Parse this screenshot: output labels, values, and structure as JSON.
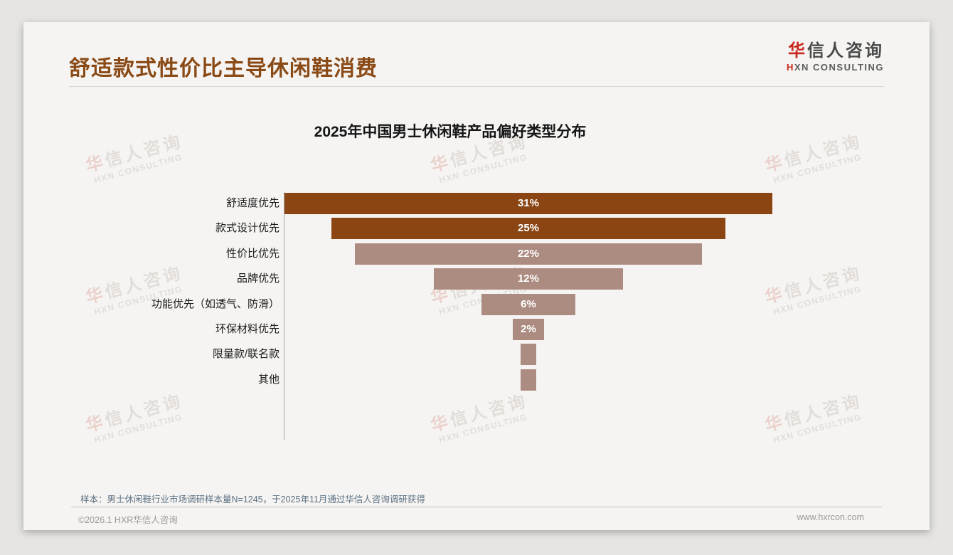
{
  "header": {
    "title": "舒适款式性价比主导休闲鞋消费",
    "logo": {
      "cn_first": "华",
      "cn_rest": "信人咨询",
      "en_first": "H",
      "en_rest": "XN CONSULTING"
    }
  },
  "watermark": {
    "cn_first": "华",
    "cn_rest": "信人咨询",
    "en": "HXN CONSULTING"
  },
  "chart_data": {
    "type": "bar",
    "orientation": "horizontal",
    "style": "centered-funnel",
    "title": "2025年中国男士休闲鞋产品偏好类型分布",
    "categories": [
      "舒适度优先",
      "款式设计优先",
      "性价比优先",
      "品牌优先",
      "功能优先（如透气、防滑）",
      "环保材料优先",
      "限量款/联名款",
      "其他"
    ],
    "values": [
      31,
      25,
      22,
      12,
      6,
      2,
      1,
      1
    ],
    "bar_labels": [
      "31%",
      "25%",
      "22%",
      "12%",
      "6%",
      "2%",
      "",
      ""
    ],
    "series_colors": {
      "dark": "#8B4513",
      "light": "#AC8B81"
    },
    "bar_color_map": [
      "dark",
      "dark",
      "light",
      "light",
      "light",
      "light",
      "light",
      "light"
    ],
    "value_label_color": "#ffffff",
    "xlim": [
      0,
      31
    ],
    "grid": false,
    "legend": "none",
    "axis_style": "left-spine-only"
  },
  "footnote": {
    "text": "样本：男士休闲鞋行业市场调研样本量N=1245，于2025年11月通过华信人咨询调研获得"
  },
  "footer": {
    "copyright": "©2026.1 HXR华信人咨询",
    "website": "www.hxrcon.com"
  }
}
